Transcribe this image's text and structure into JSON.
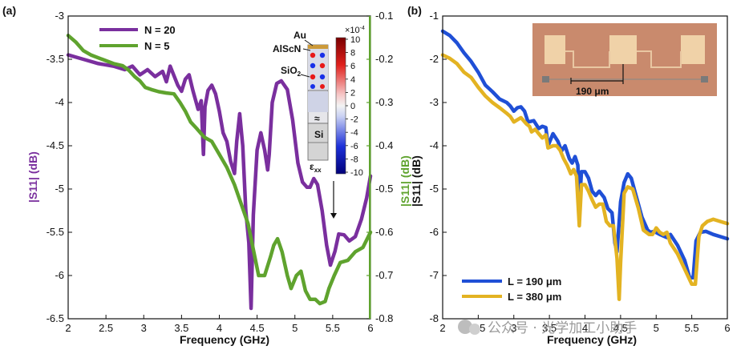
{
  "colors": {
    "purple": "#7a2f9e",
    "green": "#5fa32e",
    "blue": "#1f4fd6",
    "gold": "#e3b322",
    "axis": "#111111"
  },
  "panel_a": {
    "label": "(a)",
    "legend": [
      "N = 20",
      "N = 5"
    ],
    "inset": {
      "labels": [
        "Au",
        "AlScN",
        "SiO",
        "Si",
        "ε",
        "≈"
      ],
      "sio_sub": "2",
      "eps_sub": "xx",
      "colorbar_exponent": "×10",
      "colorbar_exponent_power": "-4",
      "colorbar_ticks": [
        "10",
        "8",
        "6",
        "4",
        "2",
        "0",
        "-2",
        "-4",
        "-6",
        "-8",
        "-10"
      ]
    }
  },
  "panel_b": {
    "label": "(b)",
    "legend": [
      "L = 190 μm",
      "L = 380 μm"
    ],
    "inset": {
      "scale_label": "190 μm"
    }
  },
  "watermark": "公众号 · 光学加工小助手",
  "chart_data": [
    {
      "id": "a",
      "type": "line",
      "xlabel": "Frequency (GHz)",
      "ylabel_left": "|S11| (dB)",
      "ylabel_right": "|S11| (dB)",
      "xlim": [
        2,
        6
      ],
      "xticks": [
        "2",
        "2.5",
        "3",
        "3.5",
        "4",
        "4.5",
        "5",
        "5.5",
        "6"
      ],
      "ylim_left": [
        -6.5,
        -3
      ],
      "yticks_left": [
        "-3",
        "-3.5",
        "-4",
        "-4.5",
        "-5",
        "-5.5",
        "-6",
        "-6.5"
      ],
      "ylim_right": [
        -0.8,
        -0.1
      ],
      "yticks_right": [
        "-0.1",
        "-0.2",
        "-0.3",
        "-0.4",
        "-0.5",
        "-0.6",
        "-0.7",
        "-0.8"
      ],
      "series": [
        {
          "name": "N = 20",
          "axis": "left",
          "points": [
            [
              2.0,
              -3.45
            ],
            [
              2.2,
              -3.5
            ],
            [
              2.4,
              -3.55
            ],
            [
              2.6,
              -3.58
            ],
            [
              2.75,
              -3.62
            ],
            [
              2.85,
              -3.58
            ],
            [
              2.95,
              -3.68
            ],
            [
              3.05,
              -3.62
            ],
            [
              3.15,
              -3.7
            ],
            [
              3.25,
              -3.64
            ],
            [
              3.3,
              -3.76
            ],
            [
              3.35,
              -3.58
            ],
            [
              3.45,
              -3.8
            ],
            [
              3.5,
              -3.87
            ],
            [
              3.55,
              -3.73
            ],
            [
              3.6,
              -3.68
            ],
            [
              3.65,
              -3.86
            ],
            [
              3.72,
              -4.08
            ],
            [
              3.76,
              -3.98
            ],
            [
              3.79,
              -4.6
            ],
            [
              3.81,
              -4.05
            ],
            [
              3.85,
              -3.86
            ],
            [
              3.9,
              -3.8
            ],
            [
              3.95,
              -3.9
            ],
            [
              4.0,
              -4.1
            ],
            [
              4.05,
              -4.35
            ],
            [
              4.1,
              -4.45
            ],
            [
              4.15,
              -4.68
            ],
            [
              4.2,
              -4.82
            ],
            [
              4.23,
              -4.45
            ],
            [
              4.27,
              -4.13
            ],
            [
              4.31,
              -4.5
            ],
            [
              4.35,
              -5.25
            ],
            [
              4.39,
              -5.62
            ],
            [
              4.42,
              -6.38
            ],
            [
              4.45,
              -5.3
            ],
            [
              4.5,
              -4.55
            ],
            [
              4.55,
              -4.35
            ],
            [
              4.6,
              -4.55
            ],
            [
              4.64,
              -4.78
            ],
            [
              4.66,
              -4.6
            ],
            [
              4.7,
              -4.0
            ],
            [
              4.76,
              -3.78
            ],
            [
              4.82,
              -3.75
            ],
            [
              4.9,
              -3.85
            ],
            [
              4.97,
              -4.2
            ],
            [
              5.04,
              -4.7
            ],
            [
              5.1,
              -4.92
            ],
            [
              5.16,
              -4.98
            ],
            [
              5.2,
              -4.98
            ],
            [
              5.25,
              -4.88
            ],
            [
              5.3,
              -4.95
            ],
            [
              5.36,
              -5.25
            ],
            [
              5.42,
              -5.65
            ],
            [
              5.47,
              -5.88
            ],
            [
              5.53,
              -5.72
            ],
            [
              5.58,
              -5.52
            ],
            [
              5.65,
              -5.53
            ],
            [
              5.72,
              -5.6
            ],
            [
              5.8,
              -5.55
            ],
            [
              5.88,
              -5.35
            ],
            [
              5.95,
              -5.1
            ],
            [
              6.0,
              -4.85
            ]
          ]
        },
        {
          "name": "N = 5",
          "axis": "right",
          "points": [
            [
              2.0,
              -0.145
            ],
            [
              2.1,
              -0.16
            ],
            [
              2.2,
              -0.18
            ],
            [
              2.3,
              -0.19
            ],
            [
              2.45,
              -0.2
            ],
            [
              2.6,
              -0.21
            ],
            [
              2.72,
              -0.215
            ],
            [
              2.8,
              -0.225
            ],
            [
              2.88,
              -0.24
            ],
            [
              2.95,
              -0.25
            ],
            [
              3.02,
              -0.265
            ],
            [
              3.1,
              -0.27
            ],
            [
              3.2,
              -0.275
            ],
            [
              3.3,
              -0.278
            ],
            [
              3.4,
              -0.28
            ],
            [
              3.48,
              -0.3
            ],
            [
              3.55,
              -0.32
            ],
            [
              3.62,
              -0.345
            ],
            [
              3.7,
              -0.36
            ],
            [
              3.8,
              -0.38
            ],
            [
              3.9,
              -0.39
            ],
            [
              4.0,
              -0.42
            ],
            [
              4.1,
              -0.45
            ],
            [
              4.2,
              -0.49
            ],
            [
              4.3,
              -0.54
            ],
            [
              4.38,
              -0.58
            ],
            [
              4.45,
              -0.64
            ],
            [
              4.52,
              -0.7
            ],
            [
              4.6,
              -0.7
            ],
            [
              4.68,
              -0.655
            ],
            [
              4.72,
              -0.63
            ],
            [
              4.77,
              -0.615
            ],
            [
              4.83,
              -0.645
            ],
            [
              4.9,
              -0.7
            ],
            [
              4.95,
              -0.73
            ],
            [
              5.02,
              -0.7
            ],
            [
              5.08,
              -0.69
            ],
            [
              5.14,
              -0.735
            ],
            [
              5.2,
              -0.755
            ],
            [
              5.27,
              -0.755
            ],
            [
              5.33,
              -0.765
            ],
            [
              5.4,
              -0.76
            ],
            [
              5.45,
              -0.73
            ],
            [
              5.52,
              -0.7
            ],
            [
              5.6,
              -0.67
            ],
            [
              5.7,
              -0.665
            ],
            [
              5.8,
              -0.645
            ],
            [
              5.9,
              -0.635
            ],
            [
              6.0,
              -0.6
            ]
          ]
        }
      ]
    },
    {
      "id": "b",
      "type": "line",
      "xlabel": "Frequency (GHz)",
      "ylabel": "|S11| (dB)",
      "xlim": [
        2,
        6
      ],
      "xticks": [
        "2",
        "2.5",
        "3",
        "3.5",
        "4",
        "4.5",
        "5",
        "5.5",
        "6"
      ],
      "ylim": [
        -8,
        -1
      ],
      "yticks": [
        "-1",
        "-2",
        "-3",
        "-4",
        "-5",
        "-6",
        "-7",
        "-8"
      ],
      "series": [
        {
          "name": "L = 190 μm",
          "points": [
            [
              2.0,
              -1.35
            ],
            [
              2.1,
              -1.45
            ],
            [
              2.2,
              -1.62
            ],
            [
              2.3,
              -1.85
            ],
            [
              2.4,
              -2.05
            ],
            [
              2.5,
              -2.3
            ],
            [
              2.6,
              -2.6
            ],
            [
              2.7,
              -2.75
            ],
            [
              2.8,
              -2.92
            ],
            [
              2.9,
              -3.0
            ],
            [
              2.95,
              -3.08
            ],
            [
              3.0,
              -3.2
            ],
            [
              3.05,
              -3.12
            ],
            [
              3.1,
              -3.1
            ],
            [
              3.15,
              -3.2
            ],
            [
              3.2,
              -3.45
            ],
            [
              3.28,
              -3.42
            ],
            [
              3.35,
              -3.6
            ],
            [
              3.4,
              -3.55
            ],
            [
              3.45,
              -3.58
            ],
            [
              3.48,
              -4.0
            ],
            [
              3.55,
              -3.72
            ],
            [
              3.62,
              -3.9
            ],
            [
              3.67,
              -4.12
            ],
            [
              3.72,
              -4.0
            ],
            [
              3.78,
              -4.3
            ],
            [
              3.82,
              -4.4
            ],
            [
              3.86,
              -4.25
            ],
            [
              3.9,
              -4.45
            ],
            [
              3.92,
              -5.4
            ],
            [
              3.95,
              -4.6
            ],
            [
              4.0,
              -4.6
            ],
            [
              4.05,
              -4.75
            ],
            [
              4.1,
              -5.05
            ],
            [
              4.15,
              -5.15
            ],
            [
              4.2,
              -5.05
            ],
            [
              4.27,
              -5.2
            ],
            [
              4.32,
              -5.45
            ],
            [
              4.35,
              -5.5
            ],
            [
              4.38,
              -5.55
            ],
            [
              4.42,
              -6.25
            ],
            [
              4.45,
              -6.45
            ],
            [
              4.5,
              -5.3
            ],
            [
              4.55,
              -4.85
            ],
            [
              4.6,
              -4.65
            ],
            [
              4.65,
              -4.75
            ],
            [
              4.7,
              -5.05
            ],
            [
              4.8,
              -5.65
            ],
            [
              4.88,
              -5.95
            ],
            [
              4.92,
              -6.0
            ],
            [
              4.97,
              -5.98
            ],
            [
              5.05,
              -6.05
            ],
            [
              5.15,
              -6.12
            ],
            [
              5.2,
              -6.05
            ],
            [
              5.3,
              -6.3
            ],
            [
              5.4,
              -6.65
            ],
            [
              5.47,
              -7.05
            ],
            [
              5.52,
              -7.05
            ],
            [
              5.56,
              -6.2
            ],
            [
              5.62,
              -6.0
            ],
            [
              5.7,
              -5.98
            ],
            [
              5.8,
              -6.05
            ],
            [
              5.9,
              -6.1
            ],
            [
              6.0,
              -6.15
            ]
          ]
        },
        {
          "name": "L = 380 μm",
          "points": [
            [
              2.0,
              -1.9
            ],
            [
              2.1,
              -1.98
            ],
            [
              2.2,
              -2.1
            ],
            [
              2.3,
              -2.3
            ],
            [
              2.4,
              -2.42
            ],
            [
              2.5,
              -2.65
            ],
            [
              2.6,
              -2.85
            ],
            [
              2.7,
              -3.0
            ],
            [
              2.8,
              -3.12
            ],
            [
              2.9,
              -3.25
            ],
            [
              2.95,
              -3.32
            ],
            [
              3.0,
              -3.45
            ],
            [
              3.05,
              -3.4
            ],
            [
              3.1,
              -3.35
            ],
            [
              3.18,
              -3.5
            ],
            [
              3.22,
              -3.55
            ],
            [
              3.25,
              -3.68
            ],
            [
              3.3,
              -3.62
            ],
            [
              3.35,
              -3.72
            ],
            [
              3.4,
              -3.82
            ],
            [
              3.45,
              -3.75
            ],
            [
              3.48,
              -4.05
            ],
            [
              3.55,
              -4.0
            ],
            [
              3.6,
              -4.0
            ],
            [
              3.65,
              -4.1
            ],
            [
              3.7,
              -4.3
            ],
            [
              3.75,
              -4.45
            ],
            [
              3.8,
              -4.65
            ],
            [
              3.84,
              -4.55
            ],
            [
              3.88,
              -4.7
            ],
            [
              3.92,
              -5.85
            ],
            [
              3.95,
              -4.9
            ],
            [
              4.0,
              -4.9
            ],
            [
              4.05,
              -5.05
            ],
            [
              4.1,
              -5.25
            ],
            [
              4.15,
              -5.42
            ],
            [
              4.2,
              -5.35
            ],
            [
              4.25,
              -5.35
            ],
            [
              4.3,
              -5.75
            ],
            [
              4.35,
              -5.85
            ],
            [
              4.4,
              -5.85
            ],
            [
              4.45,
              -6.6
            ],
            [
              4.48,
              -7.55
            ],
            [
              4.5,
              -6.7
            ],
            [
              4.55,
              -5.1
            ],
            [
              4.6,
              -4.95
            ],
            [
              4.67,
              -5.0
            ],
            [
              4.75,
              -5.45
            ],
            [
              4.82,
              -5.95
            ],
            [
              4.9,
              -6.05
            ],
            [
              4.95,
              -6.05
            ],
            [
              5.0,
              -5.9
            ],
            [
              5.05,
              -6.0
            ],
            [
              5.1,
              -6.05
            ],
            [
              5.15,
              -6.0
            ],
            [
              5.2,
              -6.25
            ],
            [
              5.3,
              -6.5
            ],
            [
              5.4,
              -6.85
            ],
            [
              5.5,
              -7.2
            ],
            [
              5.55,
              -7.2
            ],
            [
              5.6,
              -6.1
            ],
            [
              5.65,
              -5.85
            ],
            [
              5.72,
              -5.75
            ],
            [
              5.8,
              -5.7
            ],
            [
              5.9,
              -5.75
            ],
            [
              6.0,
              -5.8
            ]
          ]
        }
      ]
    }
  ]
}
